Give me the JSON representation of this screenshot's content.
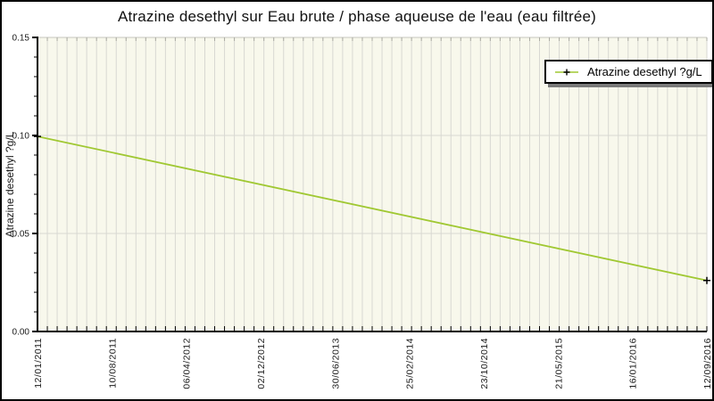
{
  "title": "Atrazine desethyl sur Eau brute / phase aqueuse de l'eau (eau filtrée)",
  "colors": {
    "frame_border": "#000000",
    "plot_bg": "#F8F8EC",
    "grid": "#D8D8D2",
    "top_border": "#C6C6BE",
    "top_tick": "#ABABA3",
    "axis": "#000000",
    "line": "#A0C832",
    "marker": "#000000",
    "text": "#1A1A1A",
    "legend_shadow": "#7A7A7A"
  },
  "chart_data": {
    "type": "line",
    "title": "Atrazine desethyl sur Eau brute / phase aqueuse de l'eau (eau filtrée)",
    "xlabel": "",
    "ylabel": "Atrazine desethyl ?g/L",
    "ylim": [
      0,
      0.15
    ],
    "y_major_ticks": [
      "0.00",
      "0.05",
      "0.10",
      "0.15"
    ],
    "y_minor_step": 0.01,
    "y_grid_values": [
      0.05,
      0.1
    ],
    "x_tick_labels": [
      "12/01/2011",
      "10/08/2011",
      "06/04/2012",
      "02/12/2012",
      "30/06/2013",
      "25/02/2014",
      "23/10/2014",
      "21/05/2015",
      "16/01/2016",
      "12/09/2016"
    ],
    "x_minor_divisions": 68,
    "grid": true,
    "legend": {
      "position": "top-right",
      "entries": [
        {
          "label": "Atrazine desethyl ?g/L",
          "line_color": "#A0C832",
          "marker": "black-plus"
        }
      ]
    },
    "series": [
      {
        "name": "Atrazine desethyl ?g/L",
        "points": [
          [
            "12/01/2011",
            0.0995
          ],
          [
            "12/09/2016",
            0.026
          ]
        ]
      }
    ]
  }
}
